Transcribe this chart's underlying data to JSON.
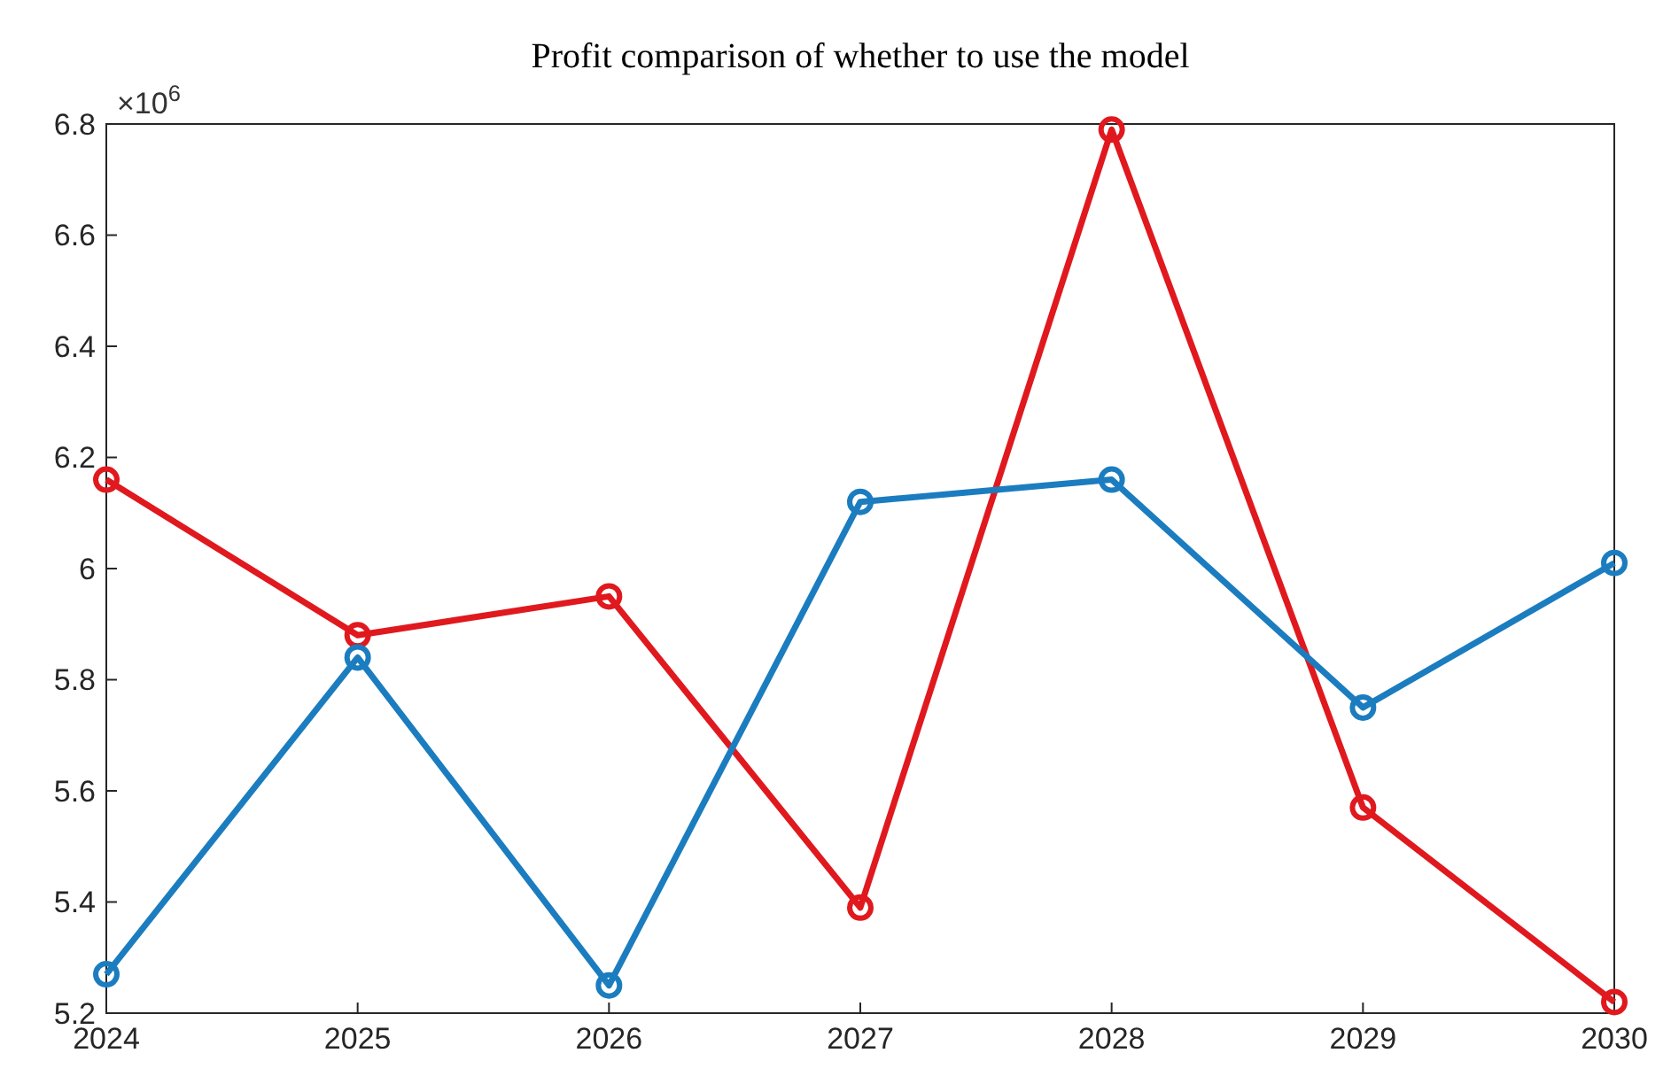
{
  "chart_data": {
    "type": "line",
    "title": "Profit comparison of whether to use the model",
    "annotations": [
      "×10$^{6}$"
    ],
    "x": [
      2024,
      2025,
      2026,
      2027,
      2028,
      2029,
      2030
    ],
    "xlim": [
      2024,
      2030
    ],
    "xticks": [
      2024,
      2025,
      2026,
      2027,
      2028,
      2029,
      2030
    ],
    "ylim": [
      5.2,
      6.8
    ],
    "yticks": [
      5.2,
      5.4,
      5.6,
      5.8,
      {
        "value": 6,
        "label": "6"
      },
      6.2,
      6.4,
      6.6,
      6.8
    ],
    "series": [
      {
        "color": "#e0191e",
        "values": [
          6.16,
          5.88,
          5.95,
          5.39,
          6.79,
          5.57,
          5.22
        ]
      },
      {
        "color": "#1b7dbf",
        "values": [
          5.27,
          5.84,
          5.25,
          6.12,
          6.16,
          5.75,
          6.01
        ]
      }
    ],
    "marker": "circle",
    "line_style": "solid"
  }
}
